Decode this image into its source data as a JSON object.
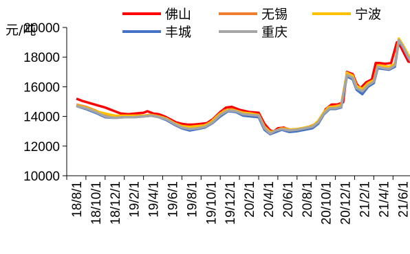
{
  "chart_data": {
    "type": "line",
    "unit_label": "元/吨",
    "ylim": [
      10000,
      20000
    ],
    "yticks": [
      "10000",
      "12000",
      "14000",
      "16000",
      "18000",
      "20000"
    ],
    "xticks": [
      "18/8/1",
      "18/10/1",
      "18/12/1",
      "19/2/1",
      "19/4/1",
      "19/6/1",
      "19/8/1",
      "19/10/1",
      "19/12/1",
      "20/2/1",
      "20/4/1",
      "20/6/1",
      "20/8/1",
      "20/10/1",
      "20/12/1",
      "21/2/1",
      "21/4/1",
      "21/6/1"
    ],
    "legend_position": "top",
    "series": [
      {
        "name": "佛山",
        "color": "#ff0000",
        "values": [
          [
            0.5,
            15200
          ],
          [
            0.8,
            15050
          ],
          [
            1.2,
            14900
          ],
          [
            1.6,
            14750
          ],
          [
            2.0,
            14600
          ],
          [
            2.4,
            14400
          ],
          [
            2.8,
            14200
          ],
          [
            3.2,
            14150
          ],
          [
            3.6,
            14200
          ],
          [
            4.0,
            14250
          ],
          [
            4.2,
            14350
          ],
          [
            4.5,
            14200
          ],
          [
            4.8,
            14150
          ],
          [
            5.1,
            14000
          ],
          [
            5.4,
            13800
          ],
          [
            5.7,
            13600
          ],
          [
            6.0,
            13500
          ],
          [
            6.3,
            13450
          ],
          [
            6.6,
            13450
          ],
          [
            7.0,
            13500
          ],
          [
            7.3,
            13550
          ],
          [
            7.6,
            13800
          ],
          [
            8.0,
            14300
          ],
          [
            8.3,
            14600
          ],
          [
            8.6,
            14650
          ],
          [
            9.0,
            14450
          ],
          [
            9.5,
            14300
          ],
          [
            10.0,
            14250
          ],
          [
            10.3,
            13500
          ],
          [
            10.6,
            13050
          ],
          [
            10.8,
            13000
          ],
          [
            11.0,
            13200
          ],
          [
            11.3,
            13250
          ],
          [
            11.6,
            13100
          ],
          [
            12.0,
            13150
          ],
          [
            12.3,
            13200
          ],
          [
            12.6,
            13300
          ],
          [
            12.9,
            13300
          ],
          [
            13.2,
            13800
          ],
          [
            13.5,
            14500
          ],
          [
            13.8,
            14800
          ],
          [
            14.1,
            14800
          ],
          [
            14.4,
            14950
          ],
          [
            14.6,
            17000
          ],
          [
            14.9,
            16850
          ],
          [
            15.1,
            16200
          ],
          [
            15.3,
            15900
          ],
          [
            15.6,
            16300
          ],
          [
            15.9,
            16500
          ],
          [
            16.1,
            17600
          ],
          [
            16.3,
            17600
          ],
          [
            16.6,
            17550
          ],
          [
            16.9,
            17600
          ],
          [
            17.2,
            19000
          ],
          [
            17.4,
            18700
          ],
          [
            17.6,
            18200
          ],
          [
            17.8,
            17700
          ],
          [
            18.0,
            17650
          ],
          [
            18.2,
            18200
          ]
        ]
      },
      {
        "name": "无锡",
        "color": "#ed7d31",
        "values": [
          [
            0.5,
            14800
          ],
          [
            1.0,
            14650
          ],
          [
            1.5,
            14400
          ],
          [
            2.0,
            14100
          ],
          [
            2.5,
            14000
          ],
          [
            3.0,
            14000
          ],
          [
            3.5,
            14050
          ],
          [
            4.0,
            14050
          ],
          [
            4.3,
            14100
          ],
          [
            4.6,
            14050
          ],
          [
            5.0,
            13950
          ],
          [
            5.4,
            13700
          ],
          [
            5.8,
            13400
          ],
          [
            6.2,
            13250
          ],
          [
            6.6,
            13300
          ],
          [
            7.0,
            13350
          ],
          [
            7.4,
            13500
          ],
          [
            7.8,
            14000
          ],
          [
            8.2,
            14400
          ],
          [
            8.6,
            14500
          ],
          [
            9.0,
            14300
          ],
          [
            9.5,
            14200
          ],
          [
            10.0,
            14100
          ],
          [
            10.3,
            13300
          ],
          [
            10.6,
            12950
          ],
          [
            10.8,
            12950
          ],
          [
            11.1,
            13150
          ],
          [
            11.4,
            13200
          ],
          [
            11.8,
            13050
          ],
          [
            12.2,
            13150
          ],
          [
            12.6,
            13300
          ],
          [
            13.0,
            13500
          ],
          [
            13.3,
            14050
          ],
          [
            13.6,
            14600
          ],
          [
            14.0,
            14700
          ],
          [
            14.3,
            14800
          ],
          [
            14.6,
            16900
          ],
          [
            14.9,
            16700
          ],
          [
            15.1,
            16000
          ],
          [
            15.4,
            15800
          ],
          [
            15.7,
            16200
          ],
          [
            16.0,
            16400
          ],
          [
            16.2,
            17400
          ],
          [
            16.5,
            17350
          ],
          [
            16.8,
            17300
          ],
          [
            17.1,
            17500
          ],
          [
            17.3,
            19200
          ],
          [
            17.5,
            18800
          ],
          [
            17.8,
            18100
          ],
          [
            18.0,
            17700
          ],
          [
            18.2,
            18100
          ]
        ]
      },
      {
        "name": "宁波",
        "color": "#ffc000",
        "values": [
          [
            0.5,
            14750
          ],
          [
            1.0,
            14600
          ],
          [
            1.5,
            14350
          ],
          [
            2.0,
            14200
          ],
          [
            2.5,
            14050
          ],
          [
            3.0,
            14050
          ],
          [
            3.5,
            14050
          ],
          [
            4.0,
            14050
          ],
          [
            4.4,
            14100
          ],
          [
            4.8,
            14000
          ],
          [
            5.2,
            13850
          ],
          [
            5.6,
            13550
          ],
          [
            6.0,
            13350
          ],
          [
            6.4,
            13300
          ],
          [
            6.8,
            13350
          ],
          [
            7.2,
            13400
          ],
          [
            7.6,
            13700
          ],
          [
            8.0,
            14200
          ],
          [
            8.4,
            14450
          ],
          [
            8.8,
            14400
          ],
          [
            9.2,
            14250
          ],
          [
            9.6,
            14200
          ],
          [
            10.0,
            14100
          ],
          [
            10.3,
            13300
          ],
          [
            10.6,
            12950
          ],
          [
            10.9,
            13050
          ],
          [
            11.2,
            13200
          ],
          [
            11.6,
            13100
          ],
          [
            12.0,
            13150
          ],
          [
            12.4,
            13250
          ],
          [
            12.8,
            13350
          ],
          [
            13.1,
            13700
          ],
          [
            13.4,
            14300
          ],
          [
            13.7,
            14650
          ],
          [
            14.0,
            14650
          ],
          [
            14.3,
            14750
          ],
          [
            14.6,
            16950
          ],
          [
            14.9,
            16750
          ],
          [
            15.1,
            16050
          ],
          [
            15.4,
            15850
          ],
          [
            15.7,
            16250
          ],
          [
            16.0,
            16450
          ],
          [
            16.2,
            17450
          ],
          [
            16.5,
            17400
          ],
          [
            16.8,
            17350
          ],
          [
            17.1,
            17550
          ],
          [
            17.3,
            19250
          ],
          [
            17.5,
            18850
          ],
          [
            17.8,
            18150
          ],
          [
            18.0,
            17750
          ],
          [
            18.2,
            18150
          ]
        ]
      },
      {
        "name": "丰城",
        "color": "#4472c4",
        "values": [
          [
            0.5,
            14700
          ],
          [
            1.0,
            14500
          ],
          [
            1.5,
            14250
          ],
          [
            2.0,
            13950
          ],
          [
            2.5,
            13900
          ],
          [
            3.0,
            13950
          ],
          [
            3.5,
            13950
          ],
          [
            4.0,
            14000
          ],
          [
            4.4,
            14050
          ],
          [
            4.8,
            13950
          ],
          [
            5.2,
            13750
          ],
          [
            5.6,
            13450
          ],
          [
            6.0,
            13200
          ],
          [
            6.4,
            13050
          ],
          [
            6.8,
            13150
          ],
          [
            7.2,
            13250
          ],
          [
            7.6,
            13550
          ],
          [
            8.0,
            14000
          ],
          [
            8.4,
            14350
          ],
          [
            8.8,
            14300
          ],
          [
            9.2,
            14050
          ],
          [
            9.6,
            14000
          ],
          [
            10.0,
            13950
          ],
          [
            10.3,
            13100
          ],
          [
            10.6,
            12800
          ],
          [
            10.9,
            12950
          ],
          [
            11.2,
            13100
          ],
          [
            11.6,
            12950
          ],
          [
            12.0,
            13000
          ],
          [
            12.4,
            13100
          ],
          [
            12.8,
            13200
          ],
          [
            13.1,
            13500
          ],
          [
            13.4,
            14150
          ],
          [
            13.7,
            14500
          ],
          [
            14.0,
            14500
          ],
          [
            14.3,
            14600
          ],
          [
            14.6,
            16700
          ],
          [
            14.9,
            16500
          ],
          [
            15.1,
            15800
          ],
          [
            15.4,
            15500
          ],
          [
            15.7,
            16000
          ],
          [
            16.0,
            16250
          ],
          [
            16.2,
            17250
          ],
          [
            16.5,
            17200
          ],
          [
            16.8,
            17150
          ],
          [
            17.1,
            17350
          ],
          [
            17.3,
            19100
          ],
          [
            17.5,
            18700
          ],
          [
            17.8,
            17950
          ],
          [
            18.0,
            17550
          ],
          [
            18.2,
            17900
          ]
        ]
      },
      {
        "name": "重庆",
        "color": "#a5a5a5",
        "values": [
          [
            0.5,
            14700
          ],
          [
            1.0,
            14550
          ],
          [
            1.5,
            14300
          ],
          [
            2.0,
            14000
          ],
          [
            2.5,
            13900
          ],
          [
            3.0,
            13950
          ],
          [
            3.5,
            13950
          ],
          [
            4.0,
            14000
          ],
          [
            4.4,
            14050
          ],
          [
            4.8,
            13950
          ],
          [
            5.2,
            13800
          ],
          [
            5.6,
            13500
          ],
          [
            6.0,
            13250
          ],
          [
            6.4,
            13150
          ],
          [
            6.8,
            13200
          ],
          [
            7.2,
            13300
          ],
          [
            7.6,
            13600
          ],
          [
            8.0,
            14100
          ],
          [
            8.4,
            14400
          ],
          [
            8.8,
            14350
          ],
          [
            9.2,
            14150
          ],
          [
            9.6,
            14100
          ],
          [
            10.0,
            14050
          ],
          [
            10.3,
            13200
          ],
          [
            10.6,
            12850
          ],
          [
            10.9,
            13050
          ],
          [
            11.2,
            13150
          ],
          [
            11.6,
            13050
          ],
          [
            12.0,
            13100
          ],
          [
            12.4,
            13200
          ],
          [
            12.8,
            13300
          ],
          [
            13.1,
            13600
          ],
          [
            13.4,
            14200
          ],
          [
            13.7,
            14550
          ],
          [
            14.0,
            14550
          ],
          [
            14.3,
            14650
          ],
          [
            14.6,
            16800
          ],
          [
            14.9,
            16600
          ],
          [
            15.1,
            15900
          ],
          [
            15.4,
            15700
          ],
          [
            15.7,
            16100
          ],
          [
            16.0,
            16350
          ],
          [
            16.2,
            17350
          ],
          [
            16.5,
            17250
          ],
          [
            16.8,
            17200
          ],
          [
            17.1,
            17450
          ],
          [
            17.3,
            19150
          ],
          [
            17.5,
            18750
          ],
          [
            17.8,
            18000
          ],
          [
            18.0,
            17600
          ],
          [
            18.2,
            17950
          ]
        ]
      }
    ]
  }
}
